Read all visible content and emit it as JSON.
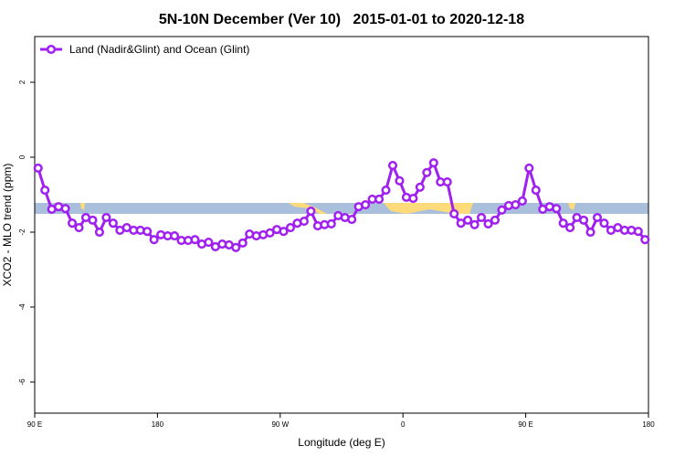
{
  "chart_data": {
    "type": "line",
    "title": "5N-10N December (Ver 10)   2015-01-01 to 2020-12-18",
    "x_label": "Longitude (deg E)",
    "y_label": "XCO2 - MLO trend (ppm)",
    "x": [
      92.5,
      97.5,
      102.5,
      107.5,
      112.5,
      117.5,
      122.5,
      127.5,
      132.5,
      137.5,
      142.5,
      147.5,
      152.5,
      157.5,
      162.5,
      167.5,
      172.5,
      177.5,
      182.5,
      187.5,
      192.5,
      197.5,
      202.5,
      207.5,
      212.5,
      217.5,
      222.5,
      227.5,
      232.5,
      237.5,
      242.5,
      247.5,
      252.5,
      257.5,
      262.5,
      267.5,
      272.5,
      277.5,
      282.5,
      287.5,
      292.5,
      297.5,
      302.5,
      307.5,
      312.5,
      317.5,
      322.5,
      327.5,
      332.5,
      337.5,
      342.5,
      347.5,
      352.5,
      357.5,
      362.5,
      367.5,
      372.5,
      377.5,
      382.5,
      387.5,
      392.5,
      397.5,
      402.5,
      407.5,
      412.5,
      417.5,
      422.5,
      427.5,
      432.5,
      437.5,
      442.5,
      447.5,
      452.5,
      457.5,
      462.5,
      467.5,
      472.5,
      477.5,
      482.5,
      487.5,
      492.5,
      497.5,
      502.5,
      507.5,
      512.5,
      517.5,
      522.5,
      527.5,
      532.5,
      537.5
    ],
    "series": [
      {
        "name": "Land (Nadir&Glint) and Ocean (Glint)",
        "color": "#a020f0",
        "values": [
          -0.29,
          -0.88,
          -1.39,
          -1.32,
          -1.37,
          -1.76,
          -1.88,
          -1.61,
          -1.68,
          -2.0,
          -1.61,
          -1.76,
          -1.95,
          -1.88,
          -1.95,
          -1.95,
          -1.98,
          -2.2,
          -2.07,
          -2.1,
          -2.1,
          -2.22,
          -2.22,
          -2.2,
          -2.32,
          -2.27,
          -2.39,
          -2.32,
          -2.34,
          -2.41,
          -2.29,
          -2.05,
          -2.1,
          -2.07,
          -2.02,
          -1.93,
          -1.98,
          -1.88,
          -1.76,
          -1.71,
          -1.44,
          -1.83,
          -1.8,
          -1.78,
          -1.56,
          -1.61,
          -1.66,
          -1.32,
          -1.27,
          -1.12,
          -1.12,
          -0.88,
          -0.22,
          -0.63,
          -1.07,
          -1.1,
          -0.8,
          -0.41,
          -0.15,
          -0.66,
          -0.66,
          -1.51,
          -1.76,
          -1.68,
          -1.8,
          -1.61,
          -1.78,
          -1.68,
          -1.41,
          -1.29,
          -1.27,
          -1.17,
          -0.29,
          -0.88,
          -1.39,
          -1.32,
          -1.37,
          -1.76,
          -1.88,
          -1.61,
          -1.68,
          -2.0,
          -1.61,
          -1.76,
          -1.95,
          -1.88,
          -1.95,
          -1.95,
          -1.98,
          -2.2
        ]
      }
    ],
    "xlim": [
      90,
      540
    ],
    "xticks": [
      {
        "value": 90,
        "label": "90 E"
      },
      180,
      {
        "value": 270,
        "label": "90 W"
      },
      {
        "value": 360,
        "label": "0"
      },
      {
        "value": 450,
        "label": "90 E"
      },
      {
        "value": 540,
        "label": "180"
      }
    ],
    "ylim": [
      -6.83,
      3.22
    ],
    "yticks": [
      -6,
      -4,
      -2,
      0,
      2
    ],
    "legend": "top-left"
  }
}
